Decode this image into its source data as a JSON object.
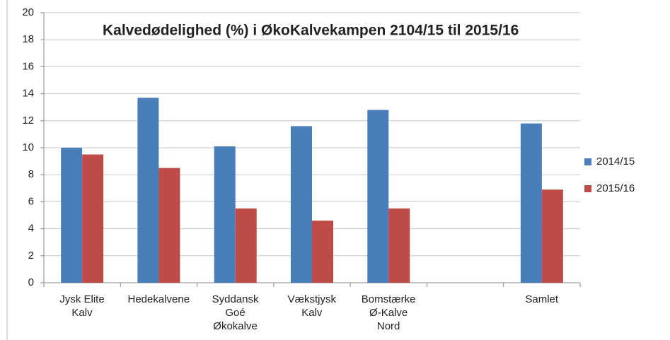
{
  "chart_data": {
    "type": "bar",
    "title": "Kalvedødelighed (%) i ØkoKalvekampen 2104/15 til 2015/16",
    "categories": [
      "Jysk Elite\nKalv",
      "Hedekalvene",
      "Syddansk\nGoé\nØkokalve",
      "Vækstjysk\nKalv",
      "Bomstærke\nØ-Kalve\nNord",
      null,
      "Samlet"
    ],
    "series": [
      {
        "name": "2014/15",
        "color": "#4a7ebb",
        "values": [
          10,
          13.7,
          10.1,
          11.6,
          12.8,
          null,
          11.8
        ]
      },
      {
        "name": "2015/16",
        "color": "#be4b48",
        "values": [
          9.5,
          8.5,
          5.5,
          4.6,
          5.5,
          null,
          6.9
        ]
      }
    ],
    "ylim": [
      0,
      20
    ],
    "yticks": [
      0,
      2,
      4,
      6,
      8,
      10,
      12,
      14,
      16,
      18,
      20
    ],
    "grid": true,
    "legend": "right"
  }
}
